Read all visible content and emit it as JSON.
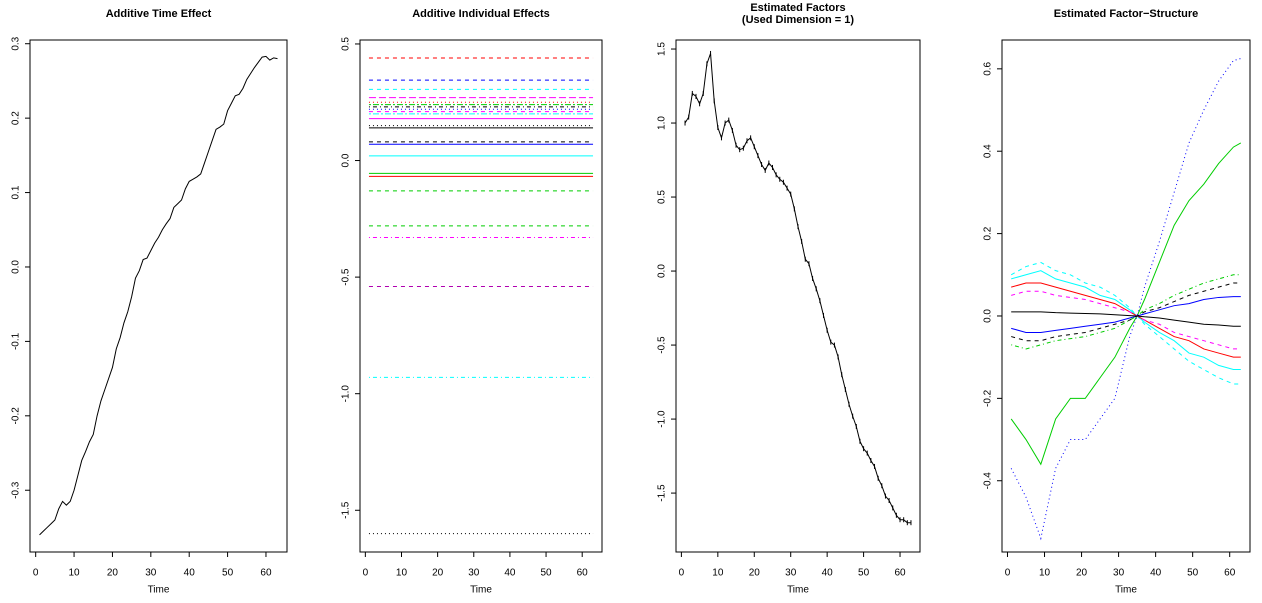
{
  "chart_data": [
    {
      "type": "line",
      "title": "Additive Time Effect",
      "xlabel": "Time",
      "color": "#000000",
      "x": [
        1,
        2,
        3,
        4,
        5,
        6,
        7,
        8,
        9,
        10,
        11,
        12,
        13,
        14,
        15,
        16,
        17,
        18,
        19,
        20,
        21,
        22,
        23,
        24,
        25,
        26,
        27,
        28,
        29,
        30,
        31,
        32,
        33,
        34,
        35,
        36,
        37,
        38,
        39,
        40,
        41,
        42,
        43,
        44,
        45,
        46,
        47,
        48,
        49,
        50,
        51,
        52,
        53,
        54,
        55,
        56,
        57,
        58,
        59,
        60,
        61,
        62,
        63
      ],
      "values": [
        -0.36,
        -0.355,
        -0.35,
        -0.345,
        -0.34,
        -0.325,
        -0.315,
        -0.32,
        -0.315,
        -0.3,
        -0.28,
        -0.26,
        -0.248,
        -0.235,
        -0.225,
        -0.2,
        -0.18,
        -0.165,
        -0.15,
        -0.135,
        -0.11,
        -0.095,
        -0.075,
        -0.06,
        -0.04,
        -0.015,
        -0.005,
        0.01,
        0.012,
        0.022,
        0.032,
        0.04,
        0.05,
        0.058,
        0.065,
        0.08,
        0.085,
        0.09,
        0.105,
        0.115,
        0.118,
        0.121,
        0.125,
        0.14,
        0.155,
        0.17,
        0.185,
        0.188,
        0.192,
        0.21,
        0.22,
        0.23,
        0.232,
        0.24,
        0.252,
        0.26,
        0.268,
        0.275,
        0.282,
        0.283,
        0.278,
        0.281,
        0.28
      ],
      "xlim": [
        -1.48,
        65.48
      ],
      "xticks": [
        0,
        10,
        20,
        30,
        40,
        50,
        60
      ],
      "ylim": [
        -0.383,
        0.305
      ],
      "yticks": [
        -0.3,
        -0.2,
        -0.1,
        {
          "value": 0,
          "label": "0.0"
        },
        0.1,
        0.2,
        0.3
      ]
    },
    {
      "type": "hline",
      "title": "Additive Individual Effects",
      "xlabel": "Time",
      "xspan": [
        1,
        63
      ],
      "values": [
        0.44,
        0.345,
        0.305,
        0.27,
        0.25,
        0.24,
        0.23,
        0.22,
        0.21,
        0.2,
        0.18,
        0.15,
        0.14,
        0.08,
        0.07,
        0.02,
        -0.055,
        -0.068,
        -0.13,
        -0.28,
        -0.33,
        -0.54,
        -0.93,
        -1.6
      ],
      "colors": [
        "#ff0000",
        "#0000ff",
        "#00ffff",
        "#ff00ff",
        "#ff0000",
        "#00cd00",
        "#000000",
        "#0000ff",
        "#ff00ff",
        "#00ffff",
        "#ff00ff",
        "#000000",
        "#000000",
        "#000000",
        "#0000ff",
        "#00ffff",
        "#00cd00",
        "#ff0000",
        "#00cd00",
        "#00cd00",
        "#ff00ff",
        "#b000b0",
        "#00ffff",
        "#000000"
      ],
      "ltys": [
        "dashed",
        "dashed",
        "dashed",
        "longdash",
        "dotted",
        "twodash",
        "dotdash",
        "dotted",
        "dashed",
        "twodash",
        "solid",
        "dotted",
        "solid",
        "dashed",
        "solid",
        "solid",
        "solid",
        "solid",
        "dashed",
        "dashed",
        "dotdash",
        "dashed",
        "dotdash",
        "dotted"
      ],
      "xlim": [
        -1.48,
        65.48
      ],
      "xticks": [
        0,
        10,
        20,
        30,
        40,
        50,
        60
      ],
      "ylim": [
        -1.679,
        0.517
      ],
      "yticks": [
        0.5,
        {
          "value": 0,
          "label": "0.0"
        },
        -0.5,
        {
          "value": -1,
          "label": "-1.0"
        },
        -1.5
      ]
    },
    {
      "type": "line",
      "title": [
        "Estimated Factors",
        "(Used Dimension = 1)"
      ],
      "xlabel": "Time",
      "color": "#000000",
      "markers": true,
      "x": [
        1,
        2,
        3,
        4,
        5,
        6,
        7,
        8,
        9,
        10,
        11,
        12,
        13,
        14,
        15,
        16,
        17,
        18,
        19,
        20,
        21,
        22,
        23,
        24,
        25,
        26,
        27,
        28,
        29,
        30,
        31,
        32,
        33,
        34,
        35,
        36,
        37,
        38,
        39,
        40,
        41,
        42,
        43,
        44,
        45,
        46,
        47,
        48,
        49,
        50,
        51,
        52,
        53,
        54,
        55,
        56,
        57,
        58,
        59,
        60,
        61,
        62,
        63
      ],
      "values": [
        1.0,
        1.04,
        1.2,
        1.18,
        1.13,
        1.2,
        1.4,
        1.47,
        1.15,
        0.97,
        0.9,
        1.0,
        1.02,
        0.95,
        0.85,
        0.82,
        0.83,
        0.88,
        0.9,
        0.84,
        0.78,
        0.72,
        0.68,
        0.73,
        0.7,
        0.65,
        0.62,
        0.6,
        0.56,
        0.52,
        0.42,
        0.3,
        0.2,
        0.08,
        0.05,
        -0.05,
        -0.12,
        -0.2,
        -0.3,
        -0.4,
        -0.48,
        -0.5,
        -0.58,
        -0.7,
        -0.8,
        -0.9,
        -0.98,
        -1.05,
        -1.15,
        -1.2,
        -1.23,
        -1.28,
        -1.32,
        -1.4,
        -1.45,
        -1.52,
        -1.55,
        -1.6,
        -1.65,
        -1.68,
        -1.68,
        -1.7,
        -1.7
      ],
      "xlim": [
        -1.48,
        65.48
      ],
      "xticks": [
        0,
        10,
        20,
        30,
        40,
        50,
        60
      ],
      "ylim": [
        -1.898,
        1.561
      ],
      "yticks": [
        1.5,
        {
          "value": 1,
          "label": "1.0"
        },
        0.5,
        {
          "value": 0,
          "label": "0.0"
        },
        -0.5,
        {
          "value": -1,
          "label": "-1.0"
        },
        -1.5
      ]
    },
    {
      "type": "line",
      "title": "Estimated Factor−Structure",
      "xlabel": "Time",
      "x": [
        1,
        5,
        9,
        13,
        17,
        21,
        25,
        29,
        33,
        35,
        37,
        41,
        45,
        49,
        53,
        57,
        61,
        63
      ],
      "series": [
        {
          "color": "#00cd00",
          "lty": "solid",
          "values": [
            -0.25,
            -0.3,
            -0.36,
            -0.25,
            -0.2,
            -0.2,
            -0.15,
            -0.1,
            -0.03,
            0,
            0.04,
            0.13,
            0.22,
            0.28,
            0.32,
            0.37,
            0.41,
            0.42
          ]
        },
        {
          "color": "#0000ff",
          "lty": "dotted",
          "values": [
            -0.37,
            -0.44,
            -0.54,
            -0.37,
            -0.3,
            -0.3,
            -0.25,
            -0.2,
            -0.05,
            0,
            0.07,
            0.18,
            0.3,
            0.42,
            0.5,
            0.57,
            0.62,
            0.625
          ]
        },
        {
          "color": "#00ffff",
          "lty": "dashed",
          "values": [
            0.1,
            0.12,
            0.13,
            0.11,
            0.1,
            0.08,
            0.07,
            0.05,
            0.02,
            0,
            -0.02,
            -0.05,
            -0.08,
            -0.11,
            -0.13,
            -0.15,
            -0.165,
            -0.165
          ]
        },
        {
          "color": "#00ffff",
          "lty": "solid",
          "values": [
            0.09,
            0.1,
            0.11,
            0.09,
            0.08,
            0.07,
            0.05,
            0.04,
            0.015,
            0,
            -0.015,
            -0.04,
            -0.06,
            -0.09,
            -0.1,
            -0.12,
            -0.13,
            -0.13
          ]
        },
        {
          "color": "#ff0000",
          "lty": "solid",
          "values": [
            0.07,
            0.08,
            0.08,
            0.07,
            0.06,
            0.05,
            0.04,
            0.03,
            0.01,
            0,
            -0.01,
            -0.03,
            -0.05,
            -0.06,
            -0.08,
            -0.09,
            -0.1,
            -0.1
          ]
        },
        {
          "color": "#ff00ff",
          "lty": "dashed",
          "values": [
            0.05,
            0.06,
            0.06,
            0.05,
            0.045,
            0.04,
            0.03,
            0.02,
            0.01,
            0,
            -0.01,
            -0.02,
            -0.04,
            -0.05,
            -0.06,
            -0.07,
            -0.08,
            -0.08
          ]
        },
        {
          "color": "#0000ff",
          "lty": "solid",
          "values": [
            -0.03,
            -0.04,
            -0.04,
            -0.035,
            -0.03,
            -0.025,
            -0.02,
            -0.015,
            -0.005,
            0,
            0.005,
            0.015,
            0.025,
            0.03,
            0.04,
            0.045,
            0.047,
            0.047
          ]
        },
        {
          "color": "#000000",
          "lty": "dashed",
          "values": [
            -0.05,
            -0.06,
            -0.06,
            -0.05,
            -0.045,
            -0.04,
            -0.03,
            -0.02,
            -0.01,
            0,
            0.01,
            0.02,
            0.035,
            0.05,
            0.06,
            0.07,
            0.08,
            0.08
          ]
        },
        {
          "color": "#00cd00",
          "lty": "dotdash",
          "values": [
            -0.07,
            -0.08,
            -0.07,
            -0.06,
            -0.055,
            -0.05,
            -0.04,
            -0.03,
            -0.01,
            0,
            0.015,
            0.03,
            0.05,
            0.065,
            0.08,
            0.09,
            0.1,
            0.1
          ]
        },
        {
          "color": "#000000",
          "lty": "solid",
          "values": [
            0.01,
            0.01,
            0.01,
            0.008,
            0.007,
            0.006,
            0.005,
            0.003,
            0.001,
            0,
            -0.002,
            -0.005,
            -0.01,
            -0.015,
            -0.02,
            -0.022,
            -0.025,
            -0.025
          ]
        }
      ],
      "xlim": [
        -1.48,
        65.48
      ],
      "xticks": [
        0,
        10,
        20,
        30,
        40,
        50,
        60
      ],
      "ylim": [
        -0.573,
        0.67
      ],
      "yticks": [
        0.6,
        0.4,
        0.2,
        {
          "value": 0,
          "label": "0.0"
        },
        -0.2,
        -0.4
      ]
    }
  ]
}
